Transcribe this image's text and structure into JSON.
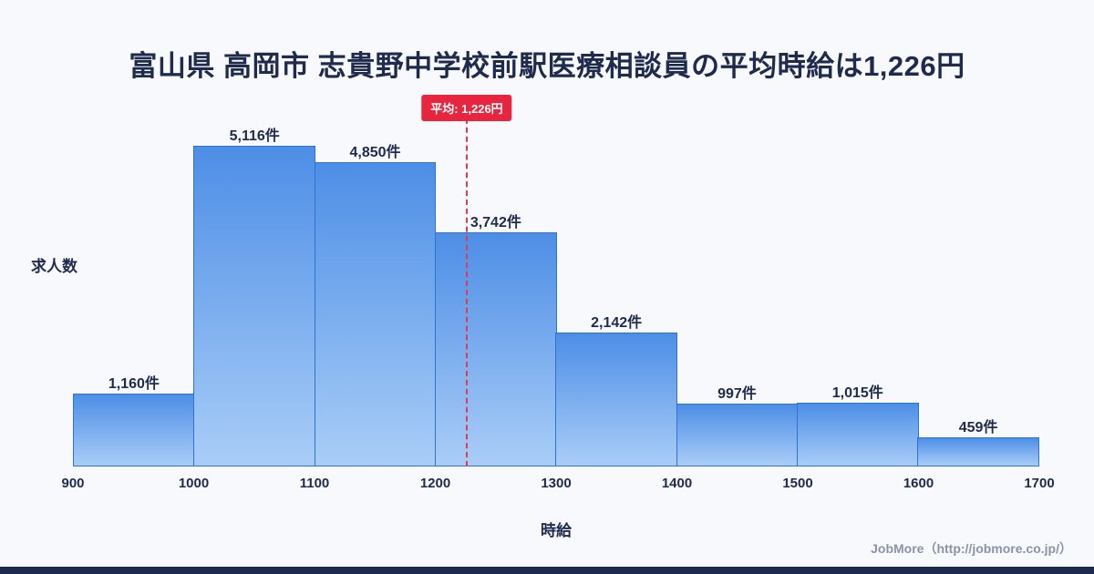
{
  "header": {
    "title": "富山県 高岡市 志貴野中学校前駅医療相談員の平均時給は1,226円"
  },
  "footer": {
    "credit": "JobMore（http://jobmore.co.jp/）"
  },
  "chart_data": {
    "type": "bar",
    "title": "富山県 高岡市 志貴野中学校前駅医療相談員の平均時給は1,226円",
    "xlabel": "時給",
    "ylabel": "求人数",
    "bin_edges": [
      900,
      1000,
      1100,
      1200,
      1300,
      1400,
      1500,
      1600,
      1700
    ],
    "categories": [
      "900-1000",
      "1000-1100",
      "1100-1200",
      "1200-1300",
      "1300-1400",
      "1400-1500",
      "1500-1600",
      "1600-1700"
    ],
    "values": [
      1160,
      5116,
      4850,
      3742,
      2142,
      997,
      1015,
      459
    ],
    "value_labels": [
      "1,160件",
      "5,116件",
      "4,850件",
      "3,742件",
      "2,142件",
      "997件",
      "1,015件",
      "459件"
    ],
    "mean": 1226,
    "mean_label": "平均: 1,226円",
    "xlim": [
      900,
      1700
    ],
    "ylim": [
      0,
      5116
    ],
    "grid": false,
    "legend": "none",
    "colors": {
      "bar_gradient_top": "#4d8ee6",
      "bar_gradient_bottom": "#a9cdf7",
      "bar_border": "#2e72d2",
      "mean_line": "#e6394f",
      "badge_background": "#e8243f",
      "title_text": "#1f2b4d",
      "background": "#f7f9fc"
    }
  }
}
